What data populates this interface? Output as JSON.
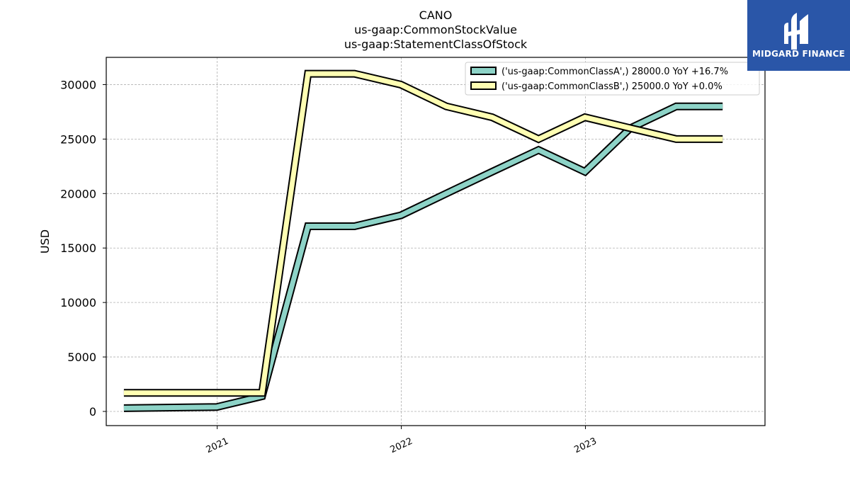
{
  "logo": {
    "text": "MIDGARD FINANCE",
    "background": "#2a56a8"
  },
  "chart_data": {
    "type": "line",
    "title": [
      "CANO",
      "us-gaap:CommonStockValue",
      "us-gaap:StatementClassOfStock"
    ],
    "ylabel": "USD",
    "xlabel": "",
    "ylim": [
      -1300,
      32500
    ],
    "xlim": [
      "2020-05-26",
      "2023-12-23"
    ],
    "y_ticks": [
      0,
      5000,
      10000,
      15000,
      20000,
      25000,
      30000
    ],
    "x_ticks": [
      {
        "label": "2021",
        "date": "2021-01-01"
      },
      {
        "label": "2022",
        "date": "2022-01-01"
      },
      {
        "label": "2023",
        "date": "2023-01-01"
      }
    ],
    "grid": true,
    "legend_position": "top-right",
    "x": [
      "2020-06-30",
      "2020-12-31",
      "2021-03-31",
      "2021-06-30",
      "2021-09-30",
      "2021-12-31",
      "2022-03-31",
      "2022-06-30",
      "2022-09-30",
      "2022-12-31",
      "2023-03-31",
      "2023-06-30",
      "2023-09-30"
    ],
    "series": [
      {
        "name": "('us-gaap:CommonClassA',) 28000.0 YoY +16.7%",
        "color": "#8dd3c7",
        "values": [
          300,
          400,
          1400,
          17000,
          17000,
          18000,
          20000,
          22000,
          24000,
          22000,
          26000,
          28000,
          28000
        ]
      },
      {
        "name": "('us-gaap:CommonClassB',) 25000.0 YoY +0.0%",
        "color": "#ffffb3",
        "values": [
          1700,
          1700,
          1700,
          31000,
          31000,
          30000,
          28000,
          27000,
          25000,
          27000,
          26000,
          25000,
          25000
        ]
      }
    ]
  }
}
